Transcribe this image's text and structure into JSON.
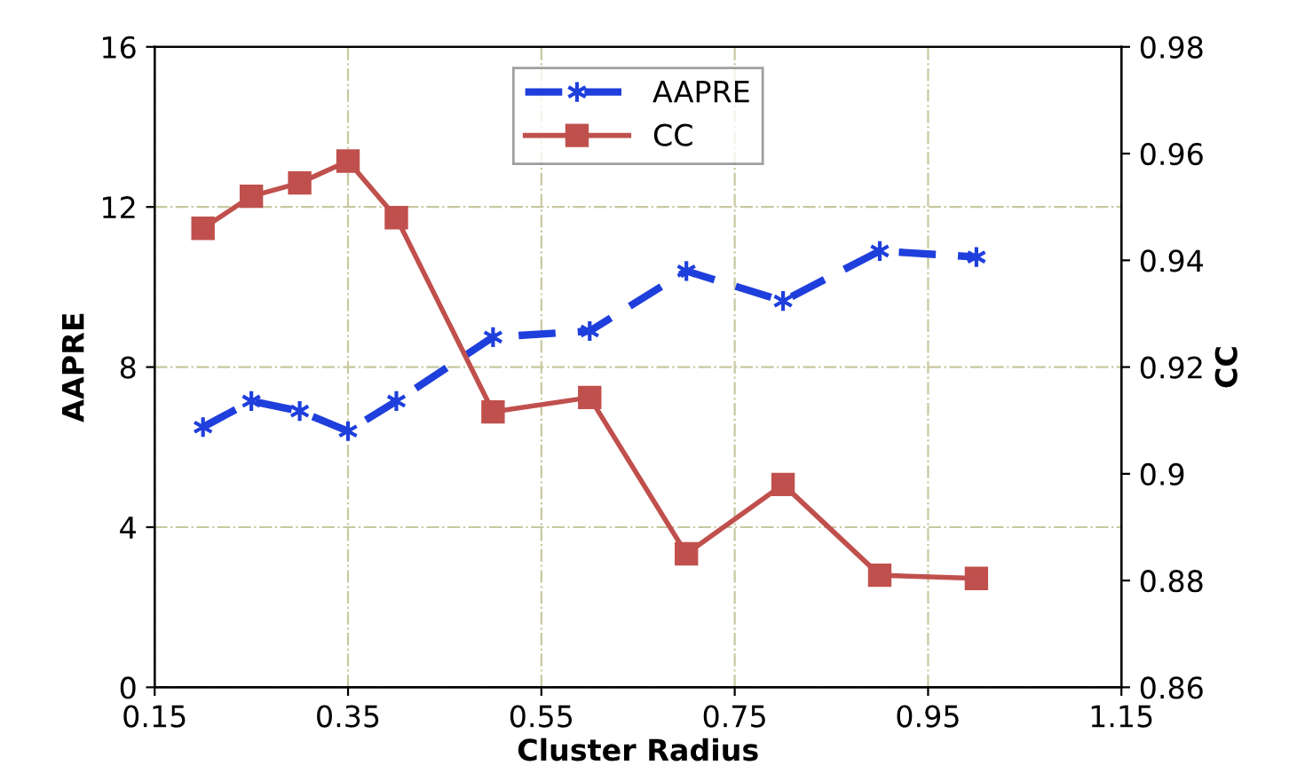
{
  "chart_data": {
    "type": "line",
    "xlabel": "Cluster Radius",
    "ylabel": "AAPRE",
    "y2label": "CC",
    "x": [
      0.2,
      0.25,
      0.3,
      0.35,
      0.4,
      0.5,
      0.6,
      0.7,
      0.8,
      0.9,
      1.0
    ],
    "series": [
      {
        "name": "AAPRE",
        "color": "#1f3fdc",
        "marker": "cross",
        "line_style": "dashed",
        "values": [
          6.5,
          7.15,
          6.9,
          6.4,
          7.15,
          8.75,
          8.9,
          10.4,
          9.65,
          10.9,
          10.75
        ]
      },
      {
        "name": "CC",
        "color": "#c0504d",
        "marker": "square",
        "line_style": "solid",
        "axis": "y2",
        "values": [
          0.946,
          0.952,
          0.9545,
          0.9586,
          0.948,
          0.9116,
          0.9143,
          0.885,
          0.898,
          0.881,
          0.8804
        ]
      }
    ],
    "xlim": [
      0.15,
      1.15
    ],
    "xticks": [
      0.15,
      0.35,
      0.55,
      0.75,
      0.95,
      1.15
    ],
    "ylim": [
      0,
      16
    ],
    "yticks": [
      0,
      4,
      8,
      12,
      16
    ],
    "y2lim": [
      0.86,
      0.98
    ],
    "y2ticks": [
      0.86,
      0.88,
      0.9,
      0.92,
      0.94,
      0.96,
      0.98
    ],
    "grid": true,
    "legend": "top"
  }
}
